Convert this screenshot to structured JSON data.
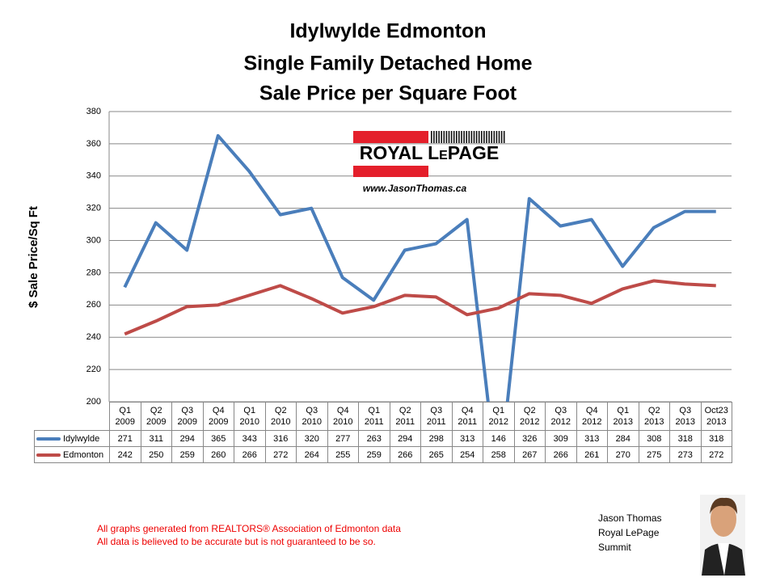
{
  "chart_data": {
    "type": "line",
    "title": [
      "Idylwylde Edmonton",
      "Single Family Detached Home",
      "Sale Price per Square Foot"
    ],
    "y_label": "$ Sale Price/Sq Ft",
    "categories": [
      "Q1 2009",
      "Q2 2009",
      "Q3 2009",
      "Q4 2009",
      "Q1 2010",
      "Q2 2010",
      "Q3 2010",
      "Q4 2010",
      "Q1 2011",
      "Q2 2011",
      "Q3 2011",
      "Q4 2011",
      "Q1 2012",
      "Q2 2012",
      "Q3 2012",
      "Q4 2012",
      "Q1 2013",
      "Q2 2013",
      "Q3 2013",
      "Oct23 2013"
    ],
    "series": [
      {
        "name": "Idylwylde",
        "color": "#4a7ebb",
        "values": [
          271,
          311,
          294,
          365,
          343,
          316,
          320,
          277,
          263,
          294,
          298,
          313,
          146,
          326,
          309,
          313,
          284,
          308,
          318,
          318
        ]
      },
      {
        "name": "Edmonton",
        "color": "#be4b48",
        "values": [
          242,
          250,
          259,
          260,
          266,
          272,
          264,
          255,
          259,
          266,
          265,
          254,
          258,
          267,
          266,
          261,
          270,
          275,
          273,
          272
        ]
      }
    ],
    "ylim": [
      200,
      380
    ],
    "yticks": [
      200,
      220,
      240,
      260,
      280,
      300,
      320,
      340,
      360,
      380
    ],
    "grid": true
  },
  "logo": {
    "brand": "ROYAL LePAGE",
    "url": "www.JasonThomas.ca"
  },
  "footer": [
    "All graphs generated from REALTORS® Association of Edmonton data",
    "All data is believed to be accurate but is not guaranteed to be so."
  ],
  "agent": [
    "Jason Thomas",
    "Royal LePage",
    "Summit"
  ]
}
